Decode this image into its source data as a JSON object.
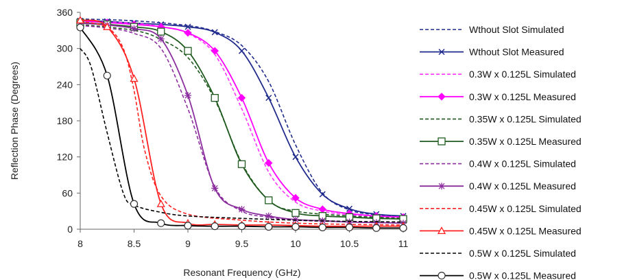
{
  "chart_data": {
    "type": "line",
    "xlabel": "Resonant Frequency (GHz)",
    "ylabel": "Reflection Phase (Degrees)",
    "xlim": [
      8,
      11
    ],
    "ylim": [
      0,
      360
    ],
    "xticks": [
      "8",
      "8.5",
      "9",
      "9.5",
      "10",
      "10.5",
      "11"
    ],
    "yticks": [
      "0",
      "60",
      "120",
      "180",
      "240",
      "300",
      "360"
    ],
    "grid": false,
    "legend_position": "right",
    "series": [
      {
        "name": "Wthout Slot Simulated",
        "color": "#1f2a8c",
        "dash": "dashed",
        "marker": "none",
        "x": [
          8,
          8.5,
          9,
          9.25,
          9.5,
          9.75,
          10,
          10.25,
          10.5,
          10.75,
          11
        ],
        "y": [
          349,
          346,
          338,
          328,
          305,
          245,
          140,
          60,
          32,
          24,
          21
        ]
      },
      {
        "name": "Wthout Slot Measured",
        "color": "#1f2a8c",
        "dash": "solid",
        "marker": "x",
        "x": [
          8,
          8.25,
          8.5,
          8.75,
          9,
          9.25,
          9.5,
          9.75,
          10,
          10.25,
          10.5,
          10.75,
          11
        ],
        "y": [
          346,
          345,
          342,
          340,
          336,
          327,
          296,
          218,
          120,
          58,
          34,
          25,
          22
        ]
      },
      {
        "name": "0.3W x 0.125L Simulated",
        "color": "#ff33ff",
        "dash": "dashed",
        "marker": "none",
        "x": [
          8,
          8.5,
          8.75,
          9,
          9.25,
          9.5,
          9.75,
          10,
          10.25,
          10.5,
          11
        ],
        "y": [
          346,
          342,
          336,
          325,
          290,
          200,
          95,
          45,
          30,
          24,
          20
        ]
      },
      {
        "name": "0.3W x 0.125L Measured",
        "color": "#ff00ff",
        "dash": "solid",
        "marker": "diamond",
        "x": [
          8,
          8.25,
          8.5,
          8.75,
          9,
          9.25,
          9.5,
          9.75,
          10,
          10.25,
          10.5,
          10.75,
          11
        ],
        "y": [
          346,
          343,
          340,
          336,
          326,
          296,
          218,
          110,
          52,
          33,
          26,
          22,
          20
        ]
      },
      {
        "name": "0.35W x 0.125L Simulated",
        "color": "#1e5a1e",
        "dash": "dashed",
        "marker": "none",
        "x": [
          8,
          8.5,
          8.75,
          9,
          9.25,
          9.5,
          9.75,
          10,
          10.5,
          11
        ],
        "y": [
          340,
          330,
          315,
          285,
          215,
          110,
          48,
          30,
          22,
          18
        ]
      },
      {
        "name": "0.35W x 0.125L Measured",
        "color": "#1e5a1e",
        "dash": "solid",
        "marker": "square",
        "x": [
          8,
          8.25,
          8.5,
          8.75,
          9,
          9.25,
          9.5,
          9.75,
          10,
          10.25,
          10.5,
          10.75,
          11
        ],
        "y": [
          343,
          340,
          336,
          328,
          296,
          218,
          108,
          48,
          27,
          22,
          20,
          18,
          17
        ]
      },
      {
        "name": "0.4W x 0.125L Simulated",
        "color": "#8b2e9e",
        "dash": "dashed",
        "marker": "none",
        "x": [
          8,
          8.25,
          8.5,
          8.75,
          9,
          9.25,
          9.5,
          9.75,
          10,
          10.5,
          11
        ],
        "y": [
          338,
          334,
          325,
          300,
          200,
          70,
          30,
          20,
          15,
          12,
          10
        ]
      },
      {
        "name": "0.4W x 0.125L Measured",
        "color": "#8b2e9e",
        "dash": "solid",
        "marker": "star",
        "x": [
          8,
          8.25,
          8.5,
          8.75,
          9,
          9.25,
          9.5,
          9.75,
          10,
          10.25,
          10.5,
          10.75,
          11
        ],
        "y": [
          342,
          339,
          333,
          316,
          222,
          68,
          33,
          22,
          16,
          14,
          12,
          11,
          10
        ]
      },
      {
        "name": "0.45W x 0.125L Simulated",
        "color": "#ff2020",
        "dash": "dashed",
        "marker": "none",
        "x": [
          8,
          8.25,
          8.4,
          8.5,
          8.6,
          8.75,
          9,
          9.5,
          10,
          10.5,
          11
        ],
        "y": [
          345,
          335,
          300,
          230,
          130,
          55,
          25,
          15,
          10,
          8,
          7
        ]
      },
      {
        "name": "0.45W x 0.125L Measured",
        "color": "#ff2020",
        "dash": "solid",
        "marker": "triangle",
        "x": [
          8,
          8.25,
          8.5,
          8.75,
          9,
          9.25,
          9.5,
          9.75,
          10,
          10.25,
          10.5,
          10.75,
          11
        ],
        "y": [
          347,
          336,
          250,
          42,
          10,
          8,
          7,
          7,
          6,
          5,
          5,
          5,
          5
        ]
      },
      {
        "name": "0.5W x 0.125L Simulated",
        "color": "#000000",
        "dash": "dashed",
        "marker": "none",
        "x": [
          8,
          8.1,
          8.25,
          8.4,
          8.5,
          8.75,
          9,
          9.5,
          10,
          10.5,
          11
        ],
        "y": [
          300,
          270,
          160,
          60,
          40,
          28,
          22,
          18,
          15,
          13,
          12
        ]
      },
      {
        "name": "0.5W x 0.125L Measured",
        "color": "#000000",
        "dash": "solid",
        "marker": "circle",
        "x": [
          8,
          8.25,
          8.5,
          8.75,
          9,
          9.25,
          9.5,
          9.75,
          10,
          10.25,
          10.5,
          10.75,
          11
        ],
        "y": [
          335,
          255,
          42,
          10,
          6,
          5,
          5,
          4,
          4,
          3,
          3,
          2,
          2
        ]
      }
    ]
  }
}
